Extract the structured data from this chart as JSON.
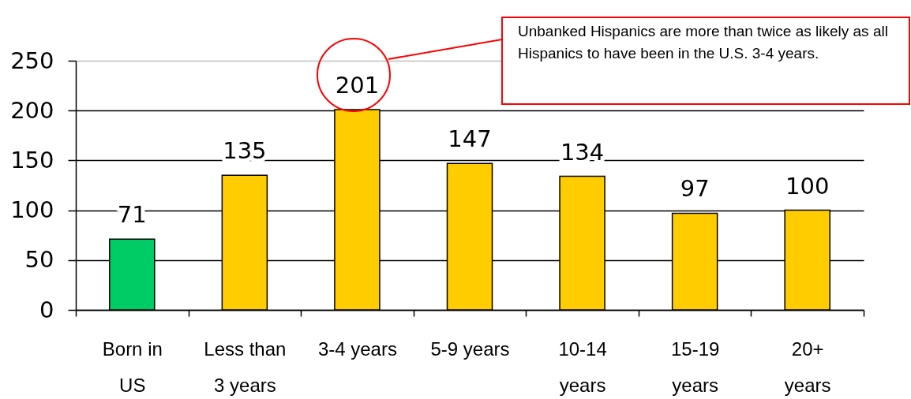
{
  "chart_data": {
    "type": "bar",
    "categories": [
      "Born in US",
      "Less than 3 years",
      "3-4 years",
      "5-9 years",
      "10-14 years",
      "15-19 years",
      "20+ years"
    ],
    "values": [
      71,
      135,
      201,
      147,
      134,
      97,
      100
    ],
    "colors": [
      "#00cc66",
      "#ffcc00",
      "#ffcc00",
      "#ffcc00",
      "#ffcc00",
      "#ffcc00",
      "#ffcc00"
    ],
    "ylim": [
      0,
      250
    ],
    "yticks": [
      0,
      50,
      100,
      150,
      200,
      250
    ],
    "grid": "y",
    "data_labels": true,
    "annotations": [
      "Unbanked Hispanics are more than twice as likely as all Hispanics to have been in the U.S. 3-4 years."
    ]
  }
}
